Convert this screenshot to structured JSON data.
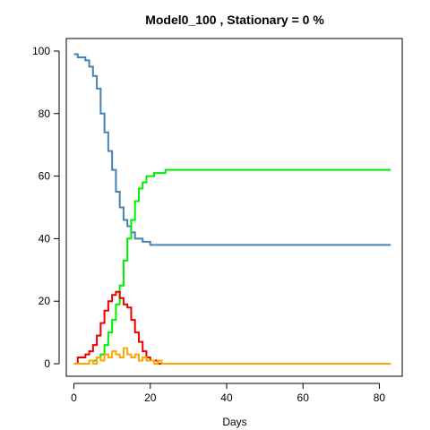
{
  "chart_data": {
    "type": "line",
    "title": "Model0_100 , Stationary = 0 %",
    "xlabel": "Days",
    "ylabel": "",
    "xlim": [
      -2,
      86
    ],
    "ylim": [
      -4,
      104
    ],
    "xticks": [
      0,
      20,
      40,
      60,
      80
    ],
    "yticks": [
      0,
      20,
      40,
      60,
      80,
      100
    ],
    "xtick_labels": [
      "0",
      "20",
      "40",
      "60",
      "80"
    ],
    "ytick_labels": [
      "0",
      "20",
      "40",
      "60",
      "80",
      "100"
    ],
    "grid": false,
    "legend": "none",
    "step": true,
    "series": [
      {
        "color": "#4682b4",
        "x": [
          0,
          1,
          2,
          3,
          4,
          5,
          6,
          7,
          8,
          9,
          10,
          11,
          12,
          13,
          14,
          15,
          16,
          17,
          18,
          19,
          20,
          21,
          22,
          23,
          24,
          25,
          83
        ],
        "y": [
          99,
          98,
          98,
          97,
          95,
          92,
          88,
          80,
          74,
          68,
          62,
          55,
          50,
          46,
          44,
          42,
          40,
          40,
          39,
          39,
          38,
          38,
          38,
          38,
          38,
          38,
          38
        ]
      },
      {
        "color": "#00ee00",
        "x": [
          0,
          1,
          2,
          3,
          4,
          5,
          6,
          7,
          8,
          9,
          10,
          11,
          12,
          13,
          14,
          15,
          16,
          17,
          18,
          19,
          20,
          21,
          22,
          23,
          24,
          25,
          83
        ],
        "y": [
          0,
          0,
          0,
          0,
          1,
          1,
          2,
          3,
          6,
          10,
          14,
          19,
          25,
          33,
          40,
          46,
          52,
          56,
          58,
          60,
          60,
          61,
          61,
          61,
          62,
          62,
          62
        ]
      },
      {
        "color": "#ee0000",
        "x": [
          0,
          1,
          2,
          3,
          4,
          5,
          6,
          7,
          8,
          9,
          10,
          11,
          12,
          13,
          14,
          15,
          16,
          17,
          18,
          19,
          20,
          21,
          22,
          23,
          24,
          25,
          83
        ],
        "y": [
          0,
          2,
          2,
          3,
          4,
          6,
          9,
          13,
          17,
          20,
          22,
          23,
          21,
          19,
          18,
          14,
          10,
          7,
          4,
          2,
          1,
          1,
          0,
          0,
          0,
          0,
          0
        ]
      },
      {
        "color": "#ffa500",
        "x": [
          0,
          1,
          2,
          3,
          4,
          5,
          6,
          7,
          8,
          9,
          10,
          11,
          12,
          13,
          14,
          15,
          16,
          17,
          18,
          19,
          20,
          21,
          22,
          23,
          24,
          25,
          83
        ],
        "y": [
          0,
          0,
          0,
          0,
          1,
          0,
          2,
          1,
          3,
          2,
          4,
          3,
          2,
          5,
          3,
          2,
          3,
          1,
          2,
          1,
          1,
          0,
          1,
          0,
          0,
          0,
          0
        ]
      }
    ]
  }
}
